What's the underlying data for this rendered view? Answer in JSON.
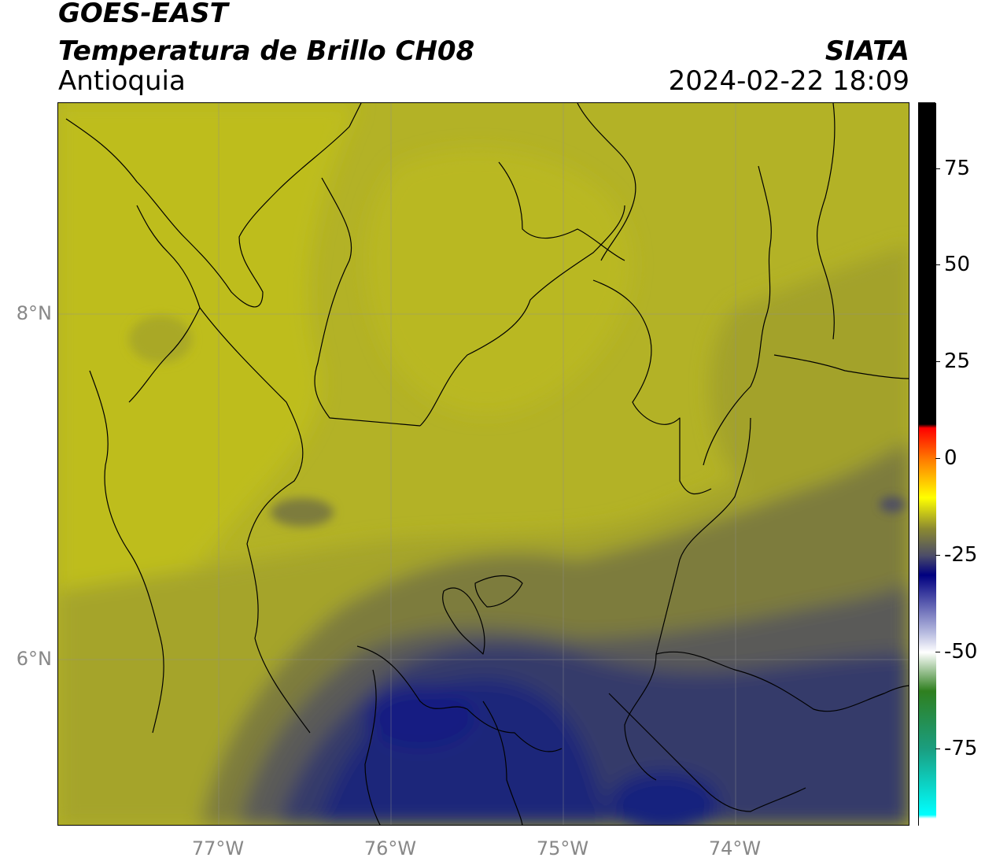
{
  "header": {
    "satellite": "GOES-EAST",
    "product": "Temperatura de Brillo CH08",
    "region": "Antioquia",
    "agency": "SIATA",
    "datetime": "2024-02-22 18:09"
  },
  "map": {
    "lat_range": [
      5.1,
      9.3
    ],
    "lon_range": [
      -77.95,
      -73.0
    ],
    "lat_ticks": [
      {
        "value": 8,
        "label": "8°N"
      },
      {
        "value": 6,
        "label": "6°N"
      }
    ],
    "lon_ticks": [
      {
        "value": -77,
        "label": "77°W"
      },
      {
        "value": -76,
        "label": "76°W"
      },
      {
        "value": -75,
        "label": "75°W"
      },
      {
        "value": -74,
        "label": "74°W"
      }
    ],
    "grid": true,
    "colors": {
      "warm_yellow": "#bcbb21",
      "olive": "#a8a628",
      "olive_dark": "#8f8d33",
      "grey_olive": "#6e6c45",
      "slate": "#4f4f62",
      "navy": "#2b3072",
      "deep_blue": "#141f80"
    }
  },
  "colorbar": {
    "range": [
      -95,
      92
    ],
    "ticks": [
      {
        "value": 75,
        "label": "75"
      },
      {
        "value": 50,
        "label": "50"
      },
      {
        "value": 25,
        "label": "25"
      },
      {
        "value": 0,
        "label": "0"
      },
      {
        "value": -25,
        "label": "-25"
      },
      {
        "value": -50,
        "label": "-50"
      },
      {
        "value": -75,
        "label": "-75"
      }
    ],
    "stops": [
      {
        "value": 92,
        "color": "#000000"
      },
      {
        "value": 9,
        "color": "#000000"
      },
      {
        "value": 8,
        "color": "#ff0000"
      },
      {
        "value": 0,
        "color": "#ff7a00"
      },
      {
        "value": -10,
        "color": "#ffff00"
      },
      {
        "value": -18,
        "color": "#8c8a30"
      },
      {
        "value": -25,
        "color": "#4b4c68"
      },
      {
        "value": -30,
        "color": "#000080"
      },
      {
        "value": -45,
        "color": "#b8bce0"
      },
      {
        "value": -50,
        "color": "#ffffff"
      },
      {
        "value": -60,
        "color": "#2f7f1f"
      },
      {
        "value": -75,
        "color": "#1a9e80"
      },
      {
        "value": -92,
        "color": "#00ffff"
      },
      {
        "value": -93,
        "color": "#ffffff"
      },
      {
        "value": -95,
        "color": "#ffffff"
      }
    ]
  }
}
